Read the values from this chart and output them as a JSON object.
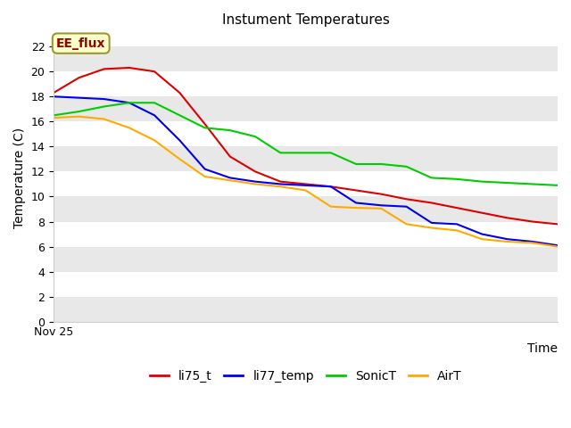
{
  "title": "Instument Temperatures",
  "xlabel": "Time",
  "ylabel": "Temperature (C)",
  "ylim": [
    0,
    23
  ],
  "yticks": [
    0,
    2,
    4,
    6,
    8,
    10,
    12,
    14,
    16,
    18,
    20,
    22
  ],
  "x_label_start": "Nov 25",
  "annotation": "EE_flux",
  "plot_bg_color": "#ffffff",
  "band_color": "#e8e8e8",
  "fig_bg_color": "#ffffff",
  "series": {
    "li75_t": {
      "color": "#dd0000",
      "y": [
        18.3,
        19.5,
        20.2,
        20.3,
        20.0,
        18.3,
        15.8,
        13.2,
        12.0,
        11.2,
        11.0,
        10.8,
        10.5,
        10.2,
        9.8,
        9.5,
        9.1,
        8.7,
        8.3,
        8.0,
        7.8
      ]
    },
    "li77_temp": {
      "color": "#0000ee",
      "y": [
        18.0,
        17.9,
        17.8,
        17.5,
        16.5,
        14.5,
        12.2,
        11.5,
        11.2,
        11.0,
        10.9,
        10.8,
        9.5,
        9.3,
        9.2,
        7.9,
        7.8,
        7.0,
        6.6,
        6.4,
        6.1
      ]
    },
    "SonicT": {
      "color": "#00cc00",
      "y": [
        16.5,
        16.8,
        17.2,
        17.5,
        17.5,
        16.5,
        15.5,
        15.3,
        14.8,
        13.5,
        13.5,
        13.5,
        12.6,
        12.6,
        12.4,
        11.5,
        11.4,
        11.2,
        11.1,
        11.0,
        10.9
      ]
    },
    "AirT": {
      "color": "#ffaa00",
      "y": [
        16.3,
        16.4,
        16.2,
        15.5,
        14.5,
        13.0,
        11.6,
        11.3,
        11.0,
        10.8,
        10.5,
        9.2,
        9.1,
        9.05,
        7.8,
        7.5,
        7.3,
        6.6,
        6.4,
        6.3,
        6.0
      ]
    }
  },
  "annotation_facecolor": "#ffffcc",
  "annotation_edgecolor": "#999933",
  "annotation_textcolor": "#990000",
  "figsize": [
    6.4,
    4.8
  ],
  "dpi": 100
}
